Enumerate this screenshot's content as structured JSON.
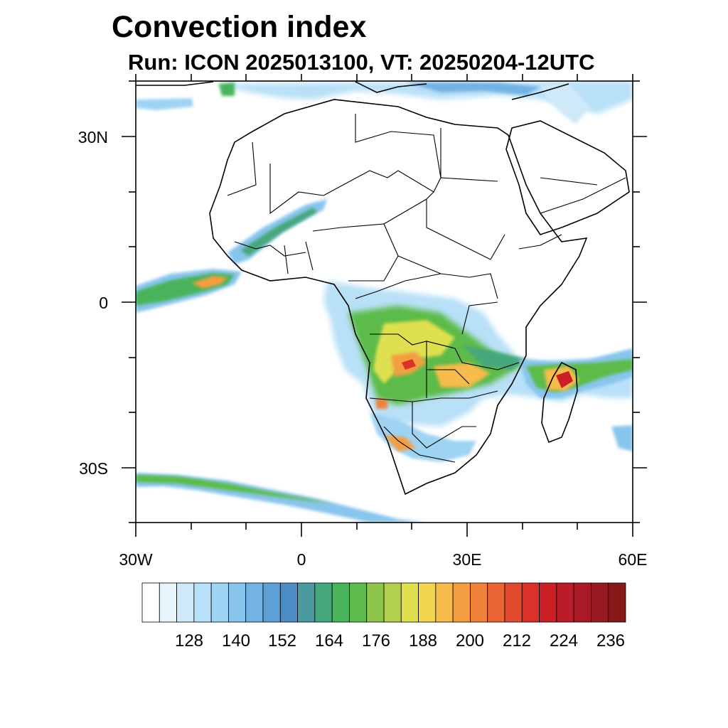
{
  "title": "Convection index",
  "subtitle": "Run: ICON 2025013100,  VT: 20250204-12UTC",
  "lat_labels": [
    "30N",
    "0",
    "30S"
  ],
  "lon_labels": [
    "30W",
    "0",
    "30E",
    "60E"
  ],
  "colorbar": {
    "tick_labels": [
      "128",
      "140",
      "152",
      "164",
      "176",
      "188",
      "200",
      "212",
      "224",
      "236"
    ],
    "colors": [
      "#ffffff",
      "#e8f4fc",
      "#cfe9f8",
      "#b8e0f7",
      "#9fd3f3",
      "#88c5ec",
      "#73b2e3",
      "#5e9fd6",
      "#4c8cc6",
      "#4a9aa0",
      "#46a77c",
      "#48b35c",
      "#5cbb4a",
      "#8cc44c",
      "#b2cf4e",
      "#dfe04f",
      "#f3d550",
      "#f6bb4b",
      "#f49e42",
      "#ef823a",
      "#e86533",
      "#e24a2e",
      "#da3129",
      "#cc2027",
      "#b91d27",
      "#a81b26",
      "#971a22",
      "#861817"
    ]
  }
}
